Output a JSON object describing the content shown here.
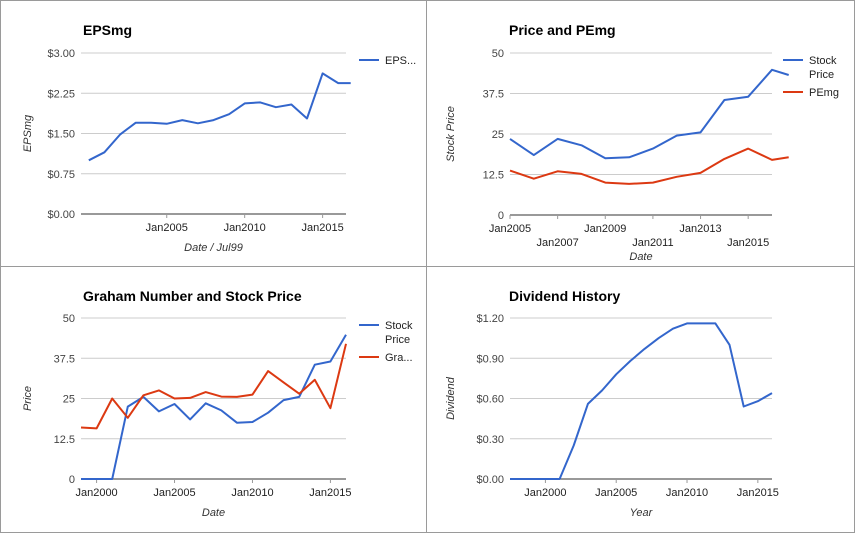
{
  "chart_data": [
    {
      "type": "line",
      "title": "EPSmg",
      "xlabel": "Date / Jul99",
      "ylabel": "EPSmg",
      "ylim": [
        0,
        3
      ],
      "xlim": [
        1999.5,
        2016.5
      ],
      "y_ticks": [
        0,
        0.75,
        1.5,
        2.25,
        3.0
      ],
      "y_tick_labels": [
        "$0.00",
        "$0.75",
        "$1.50",
        "$2.25",
        "$3.00"
      ],
      "x_ticks": [
        2005,
        2010,
        2015
      ],
      "x_tick_labels": [
        "Jan2005",
        "Jan2010",
        "Jan2015"
      ],
      "legend_position": "right",
      "legend_entries": [
        "EPS..."
      ],
      "series": [
        {
          "name": "EPS...",
          "color": "#3366cc",
          "x": [
            2000,
            2001,
            2002,
            2003,
            2004,
            2005,
            2006,
            2007,
            2008,
            2009,
            2010,
            2011,
            2012,
            2013,
            2014,
            2015,
            2016,
            2016.8
          ],
          "y": [
            1.0,
            1.15,
            1.48,
            1.7,
            1.7,
            1.68,
            1.75,
            1.69,
            1.75,
            1.86,
            2.06,
            2.08,
            1.99,
            2.04,
            1.78,
            2.62,
            2.44,
            2.44
          ]
        }
      ]
    },
    {
      "type": "line",
      "title": "Price and PEmg",
      "xlabel": "Date",
      "ylabel": "Stock Price",
      "ylim": [
        0,
        50
      ],
      "xlim": [
        2005,
        2016
      ],
      "y_ticks": [
        0,
        12.5,
        25,
        37.5,
        50
      ],
      "y_tick_labels": [
        "0",
        "12.5",
        "25",
        "37.5",
        "50"
      ],
      "x_ticks": [
        2005,
        2007,
        2009,
        2011,
        2013,
        2015
      ],
      "x_tick_labels": [
        "Jan2005",
        "Jan2007",
        "Jan2009",
        "Jan2011",
        "Jan2013",
        "Jan2015"
      ],
      "legend_position": "right",
      "legend_entries": [
        "Stock Price",
        "PEmg"
      ],
      "series": [
        {
          "name": "Stock Price",
          "color": "#3366cc",
          "x": [
            2005,
            2006,
            2007,
            2008,
            2009,
            2010,
            2011,
            2012,
            2013,
            2014,
            2015,
            2016,
            2016.7
          ],
          "y": [
            23.5,
            18.5,
            23.5,
            21.5,
            17.5,
            17.8,
            20.5,
            24.5,
            25.5,
            35.5,
            36.5,
            44.8,
            43.2
          ]
        },
        {
          "name": "PEmg",
          "color": "#dc3912",
          "x": [
            2005,
            2006,
            2007,
            2008,
            2009,
            2010,
            2011,
            2012,
            2013,
            2014,
            2015,
            2016,
            2016.7
          ],
          "y": [
            13.7,
            11.2,
            13.5,
            12.7,
            10.0,
            9.6,
            10.0,
            11.8,
            13.0,
            17.3,
            20.5,
            17.0,
            17.8
          ]
        }
      ]
    },
    {
      "type": "line",
      "title": "Graham Number and Stock Price",
      "xlabel": "Date",
      "ylabel": "Price",
      "ylim": [
        0,
        50
      ],
      "xlim": [
        1999,
        2016
      ],
      "y_ticks": [
        0,
        12.5,
        25,
        37.5,
        50
      ],
      "y_tick_labels": [
        "0",
        "12.5",
        "25",
        "37.5",
        "50"
      ],
      "x_ticks": [
        2000,
        2005,
        2010,
        2015
      ],
      "x_tick_labels": [
        "Jan2000",
        "Jan2005",
        "Jan2010",
        "Jan2015"
      ],
      "legend_position": "right",
      "legend_entries": [
        "Stock Price",
        "Gra..."
      ],
      "series": [
        {
          "name": "Stock Price",
          "color": "#3366cc",
          "x": [
            1999,
            2000,
            2001,
            2002,
            2003,
            2004,
            2005,
            2006,
            2007,
            2008,
            2009,
            2010,
            2011,
            2012,
            2013,
            2014,
            2015,
            2016
          ],
          "y": [
            0,
            0,
            0,
            22.5,
            25.5,
            21.0,
            23.3,
            18.5,
            23.5,
            21.3,
            17.5,
            17.7,
            20.6,
            24.5,
            25.5,
            35.5,
            36.5,
            44.8
          ]
        },
        {
          "name": "Gra...",
          "color": "#dc3912",
          "x": [
            1999,
            2000,
            2001,
            2002,
            2003,
            2004,
            2005,
            2006,
            2007,
            2008,
            2009,
            2010,
            2011,
            2012,
            2013,
            2014,
            2015,
            2016
          ],
          "y": [
            16.0,
            15.7,
            25.0,
            19.0,
            26.0,
            27.5,
            25.0,
            25.2,
            27.0,
            25.6,
            25.5,
            26.2,
            33.5,
            30.0,
            26.5,
            30.8,
            22.0,
            42.0
          ]
        }
      ]
    },
    {
      "type": "line",
      "title": "Dividend History",
      "xlabel": "Year",
      "ylabel": "Dividend",
      "ylim": [
        0,
        1.2
      ],
      "xlim": [
        1997.5,
        2016
      ],
      "y_ticks": [
        0,
        0.3,
        0.6,
        0.9,
        1.2
      ],
      "y_tick_labels": [
        "$0.00",
        "$0.30",
        "$0.60",
        "$0.90",
        "$1.20"
      ],
      "x_ticks": [
        2000,
        2005,
        2010,
        2015
      ],
      "x_tick_labels": [
        "Jan2000",
        "Jan2005",
        "Jan2010",
        "Jan2015"
      ],
      "series": [
        {
          "name": "",
          "color": "#3366cc",
          "x": [
            1997.5,
            2001,
            2002,
            2003,
            2004,
            2005,
            2006,
            2007,
            2008,
            2009,
            2010,
            2011,
            2012,
            2013,
            2014,
            2015,
            2016
          ],
          "y": [
            0,
            0,
            0.25,
            0.56,
            0.66,
            0.78,
            0.88,
            0.97,
            1.05,
            1.12,
            1.16,
            1.16,
            1.16,
            1.0,
            0.54,
            0.58,
            0.64
          ]
        }
      ]
    }
  ]
}
